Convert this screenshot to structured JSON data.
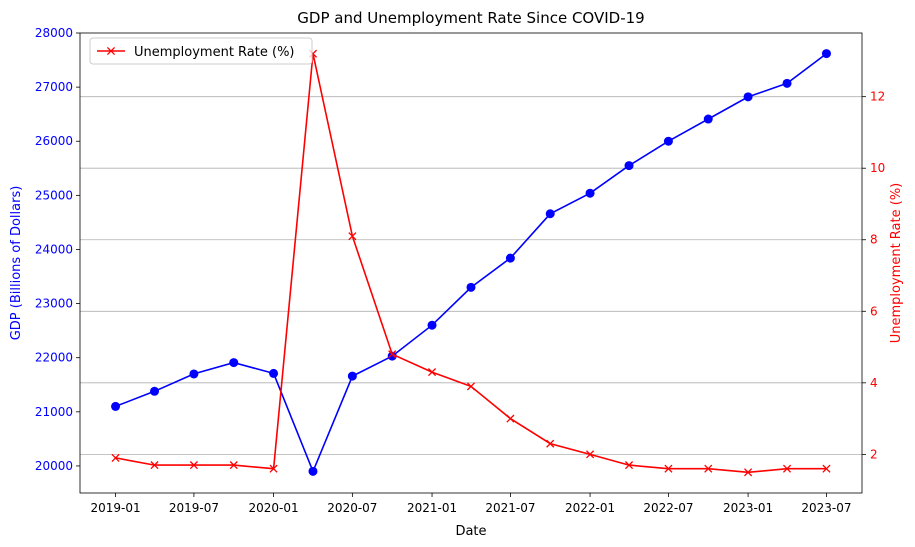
{
  "chart_data": {
    "type": "line",
    "title": "GDP and Unemployment Rate Since COVID-19",
    "xlabel": "Date",
    "ylabel_left": "GDP (Billions of Dollars)",
    "ylabel_right": "Unemployment Rate (%)",
    "x": [
      "2019-01-01",
      "2019-04-01",
      "2019-07-01",
      "2019-10-01",
      "2020-01-01",
      "2020-04-01",
      "2020-07-01",
      "2020-10-01",
      "2021-01-01",
      "2021-04-01",
      "2021-07-01",
      "2021-10-01",
      "2022-01-01",
      "2022-04-01",
      "2022-07-01",
      "2022-10-01",
      "2023-01-01",
      "2023-04-01",
      "2023-07-01"
    ],
    "xticks": [
      "2019-01",
      "2019-07",
      "2020-01",
      "2020-07",
      "2021-01",
      "2021-07",
      "2022-01",
      "2022-07",
      "2023-01",
      "2023-07"
    ],
    "series": [
      {
        "name": "GDP",
        "axis": "left",
        "color": "#0000ff",
        "marker": "circle",
        "values": [
          21100,
          21380,
          21700,
          21910,
          21710,
          19900,
          21660,
          22030,
          22600,
          23300,
          23840,
          24660,
          25040,
          25550,
          26000,
          26410,
          26820,
          27070,
          27620
        ]
      },
      {
        "name": "Unemployment Rate (%)",
        "axis": "right",
        "color": "#ff0000",
        "marker": "x",
        "values": [
          1.9,
          1.7,
          1.7,
          1.7,
          1.6,
          13.2,
          8.1,
          4.8,
          4.3,
          3.9,
          3.0,
          2.3,
          2.0,
          1.7,
          1.6,
          1.6,
          1.5,
          1.6,
          1.6
        ]
      }
    ],
    "ylim_left": [
      19500,
      28000
    ],
    "yticks_left": [
      20000,
      21000,
      22000,
      23000,
      24000,
      25000,
      26000,
      27000,
      28000
    ],
    "ylim_right": [
      0.92,
      13.78
    ],
    "yticks_right": [
      2,
      4,
      6,
      8,
      10,
      12
    ],
    "grid": "horizontal (right axis)",
    "legend": {
      "placement": "top-left",
      "entries": [
        "Unemployment Rate (%)"
      ]
    }
  }
}
